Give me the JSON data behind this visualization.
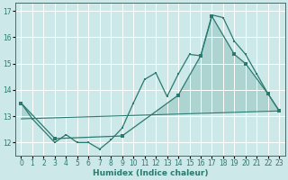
{
  "xlabel": "Humidex (Indice chaleur)",
  "background_color": "#cce8e8",
  "grid_color": "#ffffff",
  "line_color": "#2a7a6f",
  "xlim": [
    -0.5,
    23.5
  ],
  "ylim": [
    11.5,
    17.3
  ],
  "yticks": [
    12,
    13,
    14,
    15,
    16,
    17
  ],
  "xticks": [
    0,
    1,
    2,
    3,
    4,
    5,
    6,
    7,
    8,
    9,
    10,
    11,
    12,
    13,
    14,
    15,
    16,
    17,
    18,
    19,
    20,
    21,
    22,
    23
  ],
  "series1_x": [
    0,
    1,
    3,
    4,
    5,
    6,
    7,
    8,
    9,
    10,
    11,
    12,
    13,
    14,
    15,
    16,
    17,
    18,
    19,
    20,
    21,
    22,
    23
  ],
  "series1_y": [
    13.5,
    12.9,
    12.0,
    12.3,
    12.0,
    12.0,
    11.75,
    12.1,
    12.55,
    13.5,
    14.4,
    14.65,
    13.75,
    14.6,
    15.35,
    15.3,
    16.85,
    16.75,
    15.85,
    15.35,
    14.6,
    13.85,
    13.2
  ],
  "series2_x": [
    0,
    3,
    9,
    14,
    16,
    17,
    19,
    20,
    22,
    23
  ],
  "series2_y": [
    13.5,
    12.15,
    12.25,
    13.8,
    15.3,
    16.8,
    15.35,
    15.0,
    13.85,
    13.2
  ],
  "series3_x": [
    0,
    23
  ],
  "series3_y": [
    12.9,
    13.2
  ],
  "fill_alpha": 0.18
}
